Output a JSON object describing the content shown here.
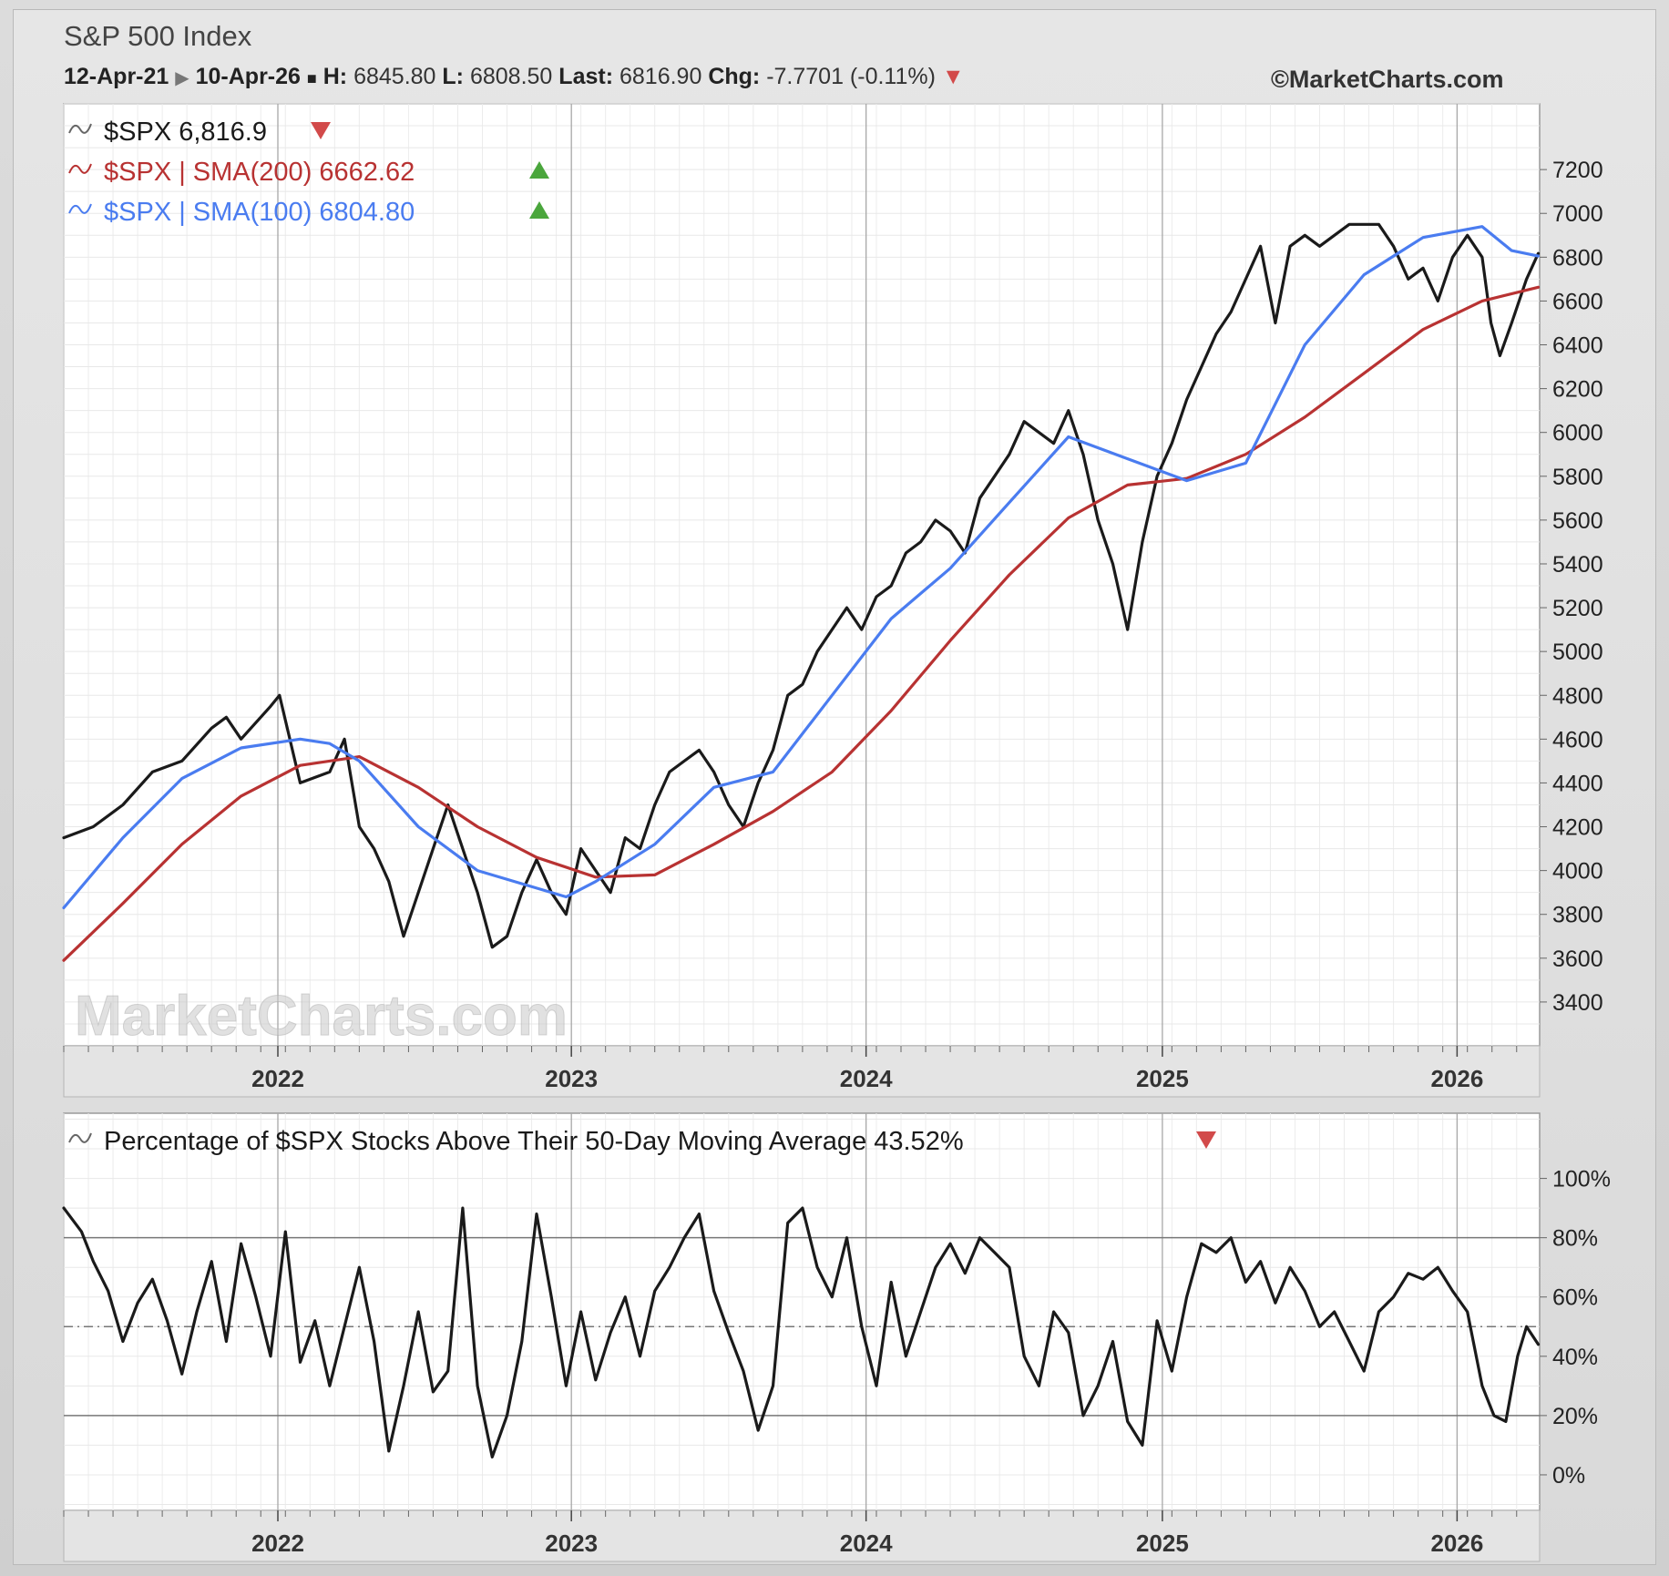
{
  "header": {
    "title": "S&P 500 Index",
    "start_date": "12-Apr-21",
    "end_date": "10-Apr-26",
    "high_label": "H:",
    "high": "6845.80",
    "low_label": "L:",
    "low": "6808.50",
    "last_label": "Last:",
    "last": "6816.90",
    "chg_label": "Chg:",
    "chg": "-7.7701 (-0.11%)",
    "copyright": "©MarketCharts.com"
  },
  "watermark": "MarketCharts.com",
  "colors": {
    "price": "#1a1a1a",
    "sma200": "#b83232",
    "sma100": "#4a7cf0",
    "up": "#4aa63c",
    "down": "#d24a4a"
  },
  "chart_data": [
    {
      "type": "line",
      "x_axis_labels": [
        "2022",
        "2023",
        "2024",
        "2025",
        "2026"
      ],
      "x_axis_positions": [
        0.7245,
        1.7178,
        2.7151,
        3.7178,
        4.7151
      ],
      "x_range": [
        0,
        4.9945
      ],
      "ylim": [
        3200,
        7500
      ],
      "y_ticks": [
        3400,
        3600,
        3800,
        4000,
        4200,
        4400,
        4600,
        4800,
        5000,
        5200,
        5400,
        5600,
        5800,
        6000,
        6200,
        6400,
        6600,
        6800,
        7000,
        7200
      ],
      "legend": [
        {
          "series": "price",
          "text": "$SPX 6,816.9",
          "marker": "down"
        },
        {
          "series": "sma200",
          "text": "$SPX | SMA(200) 6662.62",
          "marker": "up"
        },
        {
          "series": "sma100",
          "text": "$SPX | SMA(100) 6804.80",
          "marker": "up"
        }
      ],
      "series": [
        {
          "key": "price",
          "x": [
            0,
            0.1,
            0.2,
            0.3,
            0.4,
            0.5,
            0.55,
            0.6,
            0.7,
            0.73,
            0.8,
            0.9,
            0.95,
            1.0,
            1.05,
            1.1,
            1.15,
            1.2,
            1.25,
            1.3,
            1.35,
            1.4,
            1.45,
            1.5,
            1.55,
            1.6,
            1.65,
            1.7,
            1.75,
            1.8,
            1.85,
            1.9,
            1.95,
            2.0,
            2.05,
            2.1,
            2.15,
            2.2,
            2.25,
            2.3,
            2.35,
            2.4,
            2.45,
            2.5,
            2.55,
            2.6,
            2.65,
            2.7,
            2.75,
            2.8,
            2.85,
            2.9,
            2.95,
            3.0,
            3.05,
            3.1,
            3.15,
            3.2,
            3.25,
            3.3,
            3.35,
            3.4,
            3.45,
            3.5,
            3.55,
            3.6,
            3.65,
            3.7,
            3.75,
            3.8,
            3.85,
            3.9,
            3.95,
            4.0,
            4.05,
            4.1,
            4.15,
            4.2,
            4.25,
            4.3,
            4.35,
            4.4,
            4.45,
            4.5,
            4.55,
            4.6,
            4.65,
            4.7,
            4.75,
            4.8,
            4.83,
            4.86,
            4.9,
            4.95,
            4.99
          ],
          "y": [
            4150,
            4200,
            4300,
            4450,
            4500,
            4650,
            4700,
            4600,
            4750,
            4800,
            4400,
            4450,
            4600,
            4200,
            4100,
            3950,
            3700,
            3900,
            4100,
            4300,
            4100,
            3900,
            3650,
            3700,
            3900,
            4050,
            3900,
            3800,
            4100,
            4000,
            3900,
            4150,
            4100,
            4300,
            4450,
            4500,
            4550,
            4450,
            4300,
            4200,
            4400,
            4550,
            4800,
            4850,
            5000,
            5100,
            5200,
            5100,
            5250,
            5300,
            5450,
            5500,
            5600,
            5550,
            5450,
            5700,
            5800,
            5900,
            6050,
            6000,
            5950,
            6100,
            5900,
            5600,
            5400,
            5100,
            5500,
            5800,
            5950,
            6150,
            6300,
            6450,
            6550,
            6700,
            6850,
            6500,
            6850,
            6900,
            6850,
            6900,
            6950,
            6950,
            6950,
            6850,
            6700,
            6750,
            6600,
            6800,
            6900,
            6800,
            6500,
            6350,
            6500,
            6700,
            6817
          ]
        },
        {
          "key": "sma200",
          "x": [
            0,
            0.2,
            0.4,
            0.6,
            0.8,
            1.0,
            1.2,
            1.4,
            1.6,
            1.8,
            2.0,
            2.2,
            2.4,
            2.6,
            2.8,
            3.0,
            3.2,
            3.4,
            3.6,
            3.8,
            4.0,
            4.2,
            4.4,
            4.6,
            4.8,
            4.99
          ],
          "y": [
            3590,
            3850,
            4120,
            4340,
            4480,
            4520,
            4380,
            4200,
            4060,
            3970,
            3980,
            4120,
            4270,
            4450,
            4730,
            5050,
            5350,
            5610,
            5760,
            5790,
            5900,
            6070,
            6270,
            6470,
            6600,
            6663
          ]
        },
        {
          "key": "sma100",
          "x": [
            0,
            0.2,
            0.4,
            0.6,
            0.8,
            0.9,
            1.0,
            1.2,
            1.4,
            1.6,
            1.7,
            1.8,
            2.0,
            2.2,
            2.4,
            2.6,
            2.8,
            3.0,
            3.2,
            3.4,
            3.6,
            3.8,
            4.0,
            4.2,
            4.4,
            4.6,
            4.8,
            4.9,
            4.99
          ],
          "y": [
            3830,
            4150,
            4420,
            4560,
            4600,
            4580,
            4500,
            4200,
            4000,
            3920,
            3880,
            3950,
            4120,
            4380,
            4450,
            4800,
            5150,
            5380,
            5680,
            5980,
            5880,
            5780,
            5860,
            6400,
            6720,
            6890,
            6940,
            6830,
            6805
          ]
        }
      ]
    },
    {
      "type": "line",
      "x_axis_labels": [
        "2022",
        "2023",
        "2024",
        "2025",
        "2026"
      ],
      "x_axis_positions": [
        0.7245,
        1.7178,
        2.7151,
        3.7178,
        4.7151
      ],
      "x_range": [
        0,
        4.9945
      ],
      "ylim": [
        -12,
        122
      ],
      "y_ticks": [
        0,
        20,
        40,
        60,
        80,
        100
      ],
      "y_tick_suffix": "%",
      "thresholds": [
        20,
        50,
        80
      ],
      "legend": [
        {
          "series": "breadth",
          "text": "Percentage of $SPX Stocks Above Their 50-Day Moving Average 43.52%",
          "marker": "down"
        }
      ],
      "series": [
        {
          "key": "breadth",
          "x": [
            0,
            0.06,
            0.1,
            0.15,
            0.2,
            0.25,
            0.3,
            0.35,
            0.4,
            0.45,
            0.5,
            0.55,
            0.6,
            0.65,
            0.7,
            0.75,
            0.8,
            0.85,
            0.9,
            0.95,
            1.0,
            1.05,
            1.1,
            1.15,
            1.2,
            1.25,
            1.3,
            1.35,
            1.4,
            1.45,
            1.5,
            1.55,
            1.6,
            1.65,
            1.7,
            1.75,
            1.8,
            1.85,
            1.9,
            1.95,
            2.0,
            2.05,
            2.1,
            2.15,
            2.2,
            2.25,
            2.3,
            2.35,
            2.4,
            2.45,
            2.5,
            2.55,
            2.6,
            2.65,
            2.7,
            2.75,
            2.8,
            2.85,
            2.9,
            2.95,
            3.0,
            3.05,
            3.1,
            3.15,
            3.2,
            3.25,
            3.3,
            3.35,
            3.4,
            3.45,
            3.5,
            3.55,
            3.6,
            3.65,
            3.7,
            3.75,
            3.8,
            3.85,
            3.9,
            3.95,
            4.0,
            4.05,
            4.1,
            4.15,
            4.2,
            4.25,
            4.3,
            4.35,
            4.4,
            4.45,
            4.5,
            4.55,
            4.6,
            4.65,
            4.7,
            4.75,
            4.8,
            4.84,
            4.88,
            4.92,
            4.95,
            4.99
          ],
          "y": [
            90,
            82,
            72,
            62,
            45,
            58,
            66,
            52,
            34,
            55,
            72,
            45,
            78,
            60,
            40,
            82,
            38,
            52,
            30,
            50,
            70,
            45,
            8,
            30,
            55,
            28,
            35,
            90,
            30,
            6,
            20,
            45,
            88,
            60,
            30,
            55,
            32,
            48,
            60,
            40,
            62,
            70,
            80,
            88,
            62,
            48,
            35,
            15,
            30,
            85,
            90,
            70,
            60,
            80,
            50,
            30,
            65,
            40,
            55,
            70,
            78,
            68,
            80,
            75,
            70,
            40,
            30,
            55,
            48,
            20,
            30,
            45,
            18,
            10,
            52,
            35,
            60,
            78,
            75,
            80,
            65,
            72,
            58,
            70,
            62,
            50,
            55,
            45,
            35,
            55,
            60,
            68,
            66,
            70,
            62,
            55,
            30,
            20,
            18,
            40,
            50,
            44
          ]
        }
      ]
    }
  ]
}
